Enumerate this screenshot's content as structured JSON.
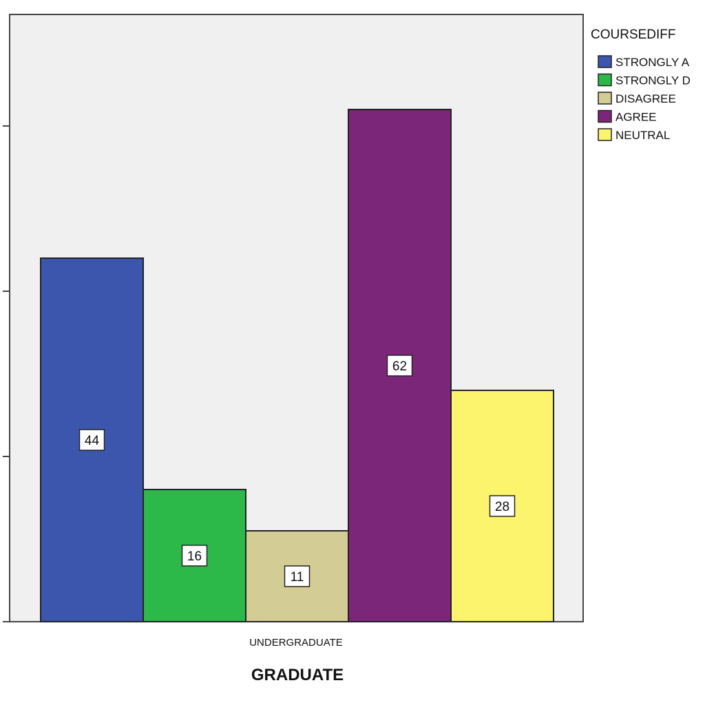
{
  "chart_data": {
    "type": "bar",
    "xlabel": "GRADUATE",
    "ylabel": "",
    "categories": [
      "UNDERGRADUATE"
    ],
    "legend": {
      "title": "COURSEDIFF",
      "placement": "right-outside-top"
    },
    "series": [
      {
        "name": "STRONGLY A",
        "values": [
          44
        ],
        "color": "#3c56ad"
      },
      {
        "name": "STRONGLY D",
        "values": [
          16
        ],
        "color": "#2db84a"
      },
      {
        "name": "DISAGREE",
        "values": [
          11
        ],
        "color": "#d4cc95"
      },
      {
        "name": "AGREE",
        "values": [
          62
        ],
        "color": "#7b2679"
      },
      {
        "name": "NEUTRAL",
        "values": [
          28
        ],
        "color": "#fbf46c"
      }
    ],
    "ylim": [
      0,
      75
    ],
    "yticks": [
      0,
      20,
      40,
      60
    ],
    "grid": false,
    "plot_background": "#f0f0f0"
  }
}
